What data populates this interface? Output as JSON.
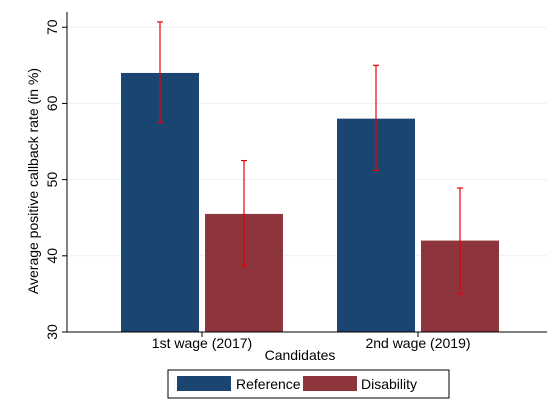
{
  "chart_data": {
    "type": "bar",
    "title": "",
    "xlabel": "Candidates",
    "ylabel": "Average positive callback rate (in %)",
    "ylim": [
      30,
      72
    ],
    "yticks": [
      30,
      40,
      50,
      60,
      70
    ],
    "grid": true,
    "legend_position": "bottom",
    "categories": [
      "1st wage (2017)",
      "2nd wage (2019)"
    ],
    "series": [
      {
        "name": "Reference",
        "color": "#1b4571",
        "values": [
          64,
          58
        ],
        "ci_low": [
          57.5,
          51.2
        ],
        "ci_high": [
          70.7,
          65
        ]
      },
      {
        "name": "Disability",
        "color": "#8e343c",
        "values": [
          45.5,
          42
        ],
        "ci_low": [
          38.7,
          35
        ],
        "ci_high": [
          52.5,
          48.9
        ]
      }
    ],
    "errorbar_color": "#e8000b"
  }
}
